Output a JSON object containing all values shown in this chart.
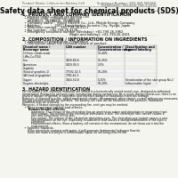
{
  "bg_color": "#f5f5f0",
  "header_top_left": "Product Name: Lithium Ion Battery Cell",
  "header_top_right1": "Substance Number: SDS-049-000010",
  "header_top_right2": "Established / Revision: Dec.1.2010",
  "main_title": "Safety data sheet for chemical products (SDS)",
  "section1_title": "1. PRODUCT AND COMPANY IDENTIFICATION",
  "s1_lines": [
    "  • Product name: Lithium Ion Battery Cell",
    "  • Product code: Cylindrical-type cell",
    "     IW4BB50L, IW4BB60L, IW4BB60A",
    "  • Company name:    Sanyo Electric Co., Ltd., Mobile Energy Company",
    "  • Address:              2001, Kamishinden, Sumoto-City, Hyogo, Japan",
    "  • Telephone number:   +81-799-26-4111",
    "  • Fax number:   +81-799-26-4120",
    "  • Emergency telephone number (Weekday): +81-799-26-3962",
    "                                               (Night and holiday): +81-799-26-4101"
  ],
  "section2_title": "2. COMPOSITION / INFORMATION ON INGREDIENTS",
  "s2_sub1": "  • Substance or preparation: Preparation",
  "s2_sub2": "  • Information about the chemical nature of product:",
  "table_headers": [
    "Chemical name /",
    "CAS number",
    "Concentration /",
    "Classification and"
  ],
  "table_headers2": [
    "Beverage name",
    "",
    "Concentration range",
    "hazard labeling"
  ],
  "table_rows": [
    [
      "Lithium cobalt oxide",
      "-",
      "30-40%",
      ""
    ],
    [
      "(LiMn-Co-PO4)",
      "",
      "",
      ""
    ],
    [
      "Iron",
      "7439-89-6",
      "15-25%",
      ""
    ],
    [
      "Aluminium",
      "7429-90-5",
      "2-5%",
      ""
    ],
    [
      "Graphite",
      "",
      "",
      ""
    ],
    [
      "(Kind of graphite-1)",
      "77592-02-5",
      "10-20%",
      ""
    ],
    [
      "(All kind of graphite)",
      "7782-42-5",
      "",
      ""
    ],
    [
      "Copper",
      "7440-50-8",
      "5-15%",
      "Sensitization of the skin group No.2"
    ],
    [
      "Organic electrolyte",
      "-",
      "10-20%",
      "Inflammable liquid"
    ]
  ],
  "section3_title": "3. HAZARD IDENTIFICATION",
  "s3_para1": "For the battery cell, chemical materials are stored in a hermetically sealed metal case, designed to withstand\ntemperature changes by pressure-type construction during normal use. As a result, during normal-use, there is no\nphysical danger of ignition or aspiration and therefore danger of hazardous materials leakage.",
  "s3_para2": "However, if exposed to a fire, added mechanical shocks, decomposed, when electric current without any measures,\nthe gas release vent will be operated. The battery cell case will be breached of fire-particles, hazardous\nmaterials may be released.",
  "s3_para3": "Moreover, if heated strongly by the surrounding fire, emit gas may be emitted.",
  "s3_sub1": "  • Most important hazard and effects:",
  "s3_human": "      Human health effects:",
  "s3_inhale": "          Inhalation: The release of the electrolyte has an anesthesia action and stimulates in respiratory tract.",
  "s3_skin1": "          Skin contact: The release of the electrolyte stimulates a skin. The electrolyte skin contact causes a",
  "s3_skin2": "          sore and stimulation on the skin.",
  "s3_eye1": "          Eye contact: The release of the electrolyte stimulates eyes. The electrolyte eye contact causes a sore",
  "s3_eye2": "          and stimulation on the eye. Especially, a substance that causes a strong inflammation of the eyes is",
  "s3_eye3": "          contained.",
  "s3_env1": "          Environmental effects: Since a battery cell remains in the environment, do not throw out it into the",
  "s3_env2": "          environment.",
  "s3_sub2": "  • Specific hazards:",
  "s3_spec1": "      If the electrolyte contacts with water, it will generate detrimental hydrogen fluoride.",
  "s3_spec2": "      Since the main electrolyte is inflammable liquid, do not bring close to fire."
}
